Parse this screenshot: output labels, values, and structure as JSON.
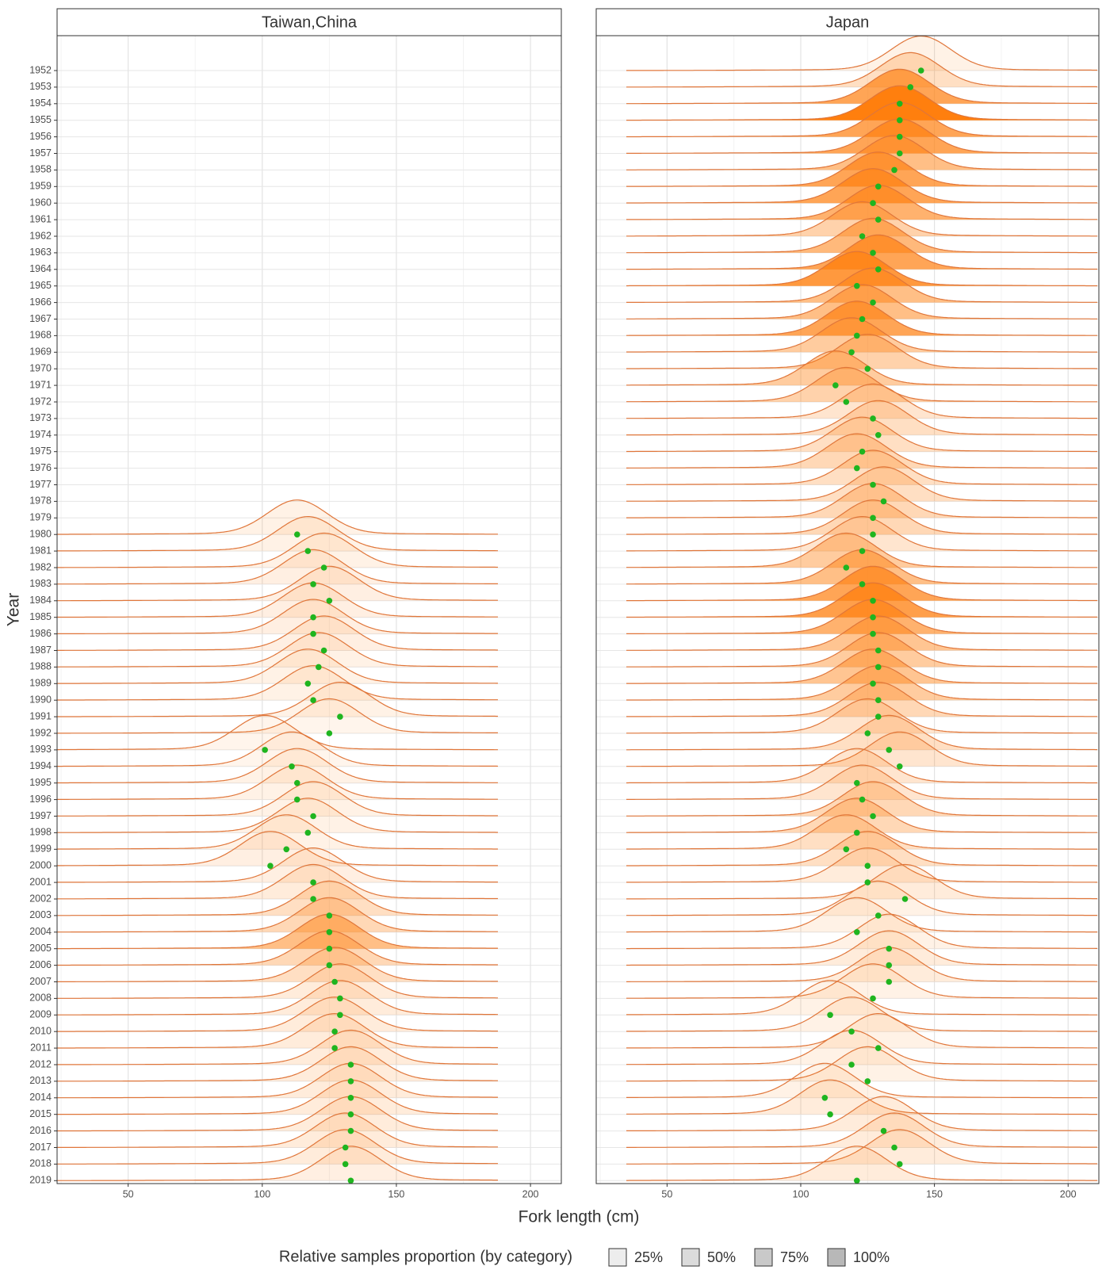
{
  "chart_data": {
    "type": "ridgeline",
    "xlabel": "Fork length (cm)",
    "ylabel": "Year",
    "xlim": [
      23.5,
      211.5
    ],
    "xticks": [
      50,
      100,
      150,
      200
    ],
    "xminorticks": [
      25,
      75,
      125,
      175
    ],
    "grid": true,
    "ridge_color": "#ff7f0e",
    "line_color": "#e0763a",
    "point_color": "#1fb51f",
    "categories": [
      "1952",
      "1953",
      "1954",
      "1955",
      "1956",
      "1957",
      "1958",
      "1959",
      "1960",
      "1961",
      "1962",
      "1963",
      "1964",
      "1965",
      "1966",
      "1967",
      "1968",
      "1969",
      "1970",
      "1971",
      "1972",
      "1973",
      "1974",
      "1975",
      "1976",
      "1977",
      "1978",
      "1979",
      "1980",
      "1981",
      "1982",
      "1983",
      "1984",
      "1985",
      "1986",
      "1987",
      "1988",
      "1989",
      "1990",
      "1991",
      "1992",
      "1993",
      "1994",
      "1995",
      "1996",
      "1997",
      "1998",
      "1999",
      "2000",
      "2001",
      "2002",
      "2003",
      "2004",
      "2005",
      "2006",
      "2007",
      "2008",
      "2009",
      "2010",
      "2011",
      "2012",
      "2013",
      "2014",
      "2015",
      "2016",
      "2017",
      "2018",
      "2019"
    ],
    "panels": [
      {
        "title": "Taiwan,China",
        "mean": [
          null,
          null,
          null,
          null,
          null,
          null,
          null,
          null,
          null,
          null,
          null,
          null,
          null,
          null,
          null,
          null,
          null,
          null,
          null,
          null,
          null,
          null,
          null,
          null,
          null,
          null,
          null,
          null,
          113,
          117,
          123,
          119,
          125,
          119,
          119,
          123,
          121,
          117,
          119,
          129,
          125,
          101,
          111,
          113,
          113,
          119,
          117,
          109,
          103,
          119,
          119,
          125,
          125,
          125,
          125,
          127,
          129,
          129,
          127,
          127,
          133,
          133,
          133,
          133,
          133,
          131,
          131,
          133
        ],
        "proportion": [
          null,
          null,
          null,
          null,
          null,
          null,
          null,
          null,
          null,
          null,
          null,
          null,
          null,
          null,
          null,
          null,
          null,
          null,
          null,
          null,
          null,
          null,
          null,
          null,
          null,
          null,
          null,
          null,
          10,
          10,
          10,
          12,
          12,
          12,
          12,
          12,
          10,
          10,
          10,
          10,
          8,
          8,
          8,
          10,
          10,
          10,
          10,
          10,
          12,
          12,
          15,
          25,
          30,
          50,
          30,
          25,
          15,
          15,
          15,
          15,
          15,
          15,
          15,
          15,
          15,
          15,
          15,
          12
        ]
      },
      {
        "title": "Japan",
        "mean": [
          145,
          141,
          137,
          137,
          137,
          137,
          135,
          129,
          127,
          129,
          123,
          127,
          129,
          121,
          127,
          123,
          121,
          119,
          125,
          113,
          117,
          127,
          129,
          123,
          121,
          127,
          131,
          127,
          127,
          123,
          117,
          123,
          127,
          127,
          127,
          129,
          129,
          127,
          129,
          129,
          125,
          133,
          137,
          121,
          123,
          127,
          121,
          117,
          125,
          125,
          139,
          129,
          121,
          133,
          133,
          133,
          127,
          111,
          119,
          129,
          119,
          125,
          109,
          111,
          131,
          135,
          137,
          121
        ],
        "proportion": [
          10,
          25,
          70,
          100,
          70,
          70,
          50,
          70,
          70,
          60,
          35,
          55,
          70,
          80,
          50,
          50,
          70,
          40,
          35,
          40,
          35,
          20,
          25,
          25,
          30,
          25,
          25,
          30,
          30,
          20,
          40,
          50,
          70,
          75,
          60,
          45,
          40,
          45,
          40,
          30,
          20,
          25,
          20,
          20,
          20,
          30,
          30,
          25,
          25,
          15,
          15,
          10,
          10,
          10,
          15,
          15,
          10,
          10,
          10,
          10,
          10,
          10,
          10,
          15,
          15,
          15,
          15,
          15
        ]
      }
    ],
    "legend": {
      "title": "Relative samples proportion (by category)",
      "items": [
        {
          "value": 25,
          "label": "25%"
        },
        {
          "value": 50,
          "label": "50%"
        },
        {
          "value": 75,
          "label": "75%"
        },
        {
          "value": 100,
          "label": "100%"
        }
      ]
    }
  }
}
